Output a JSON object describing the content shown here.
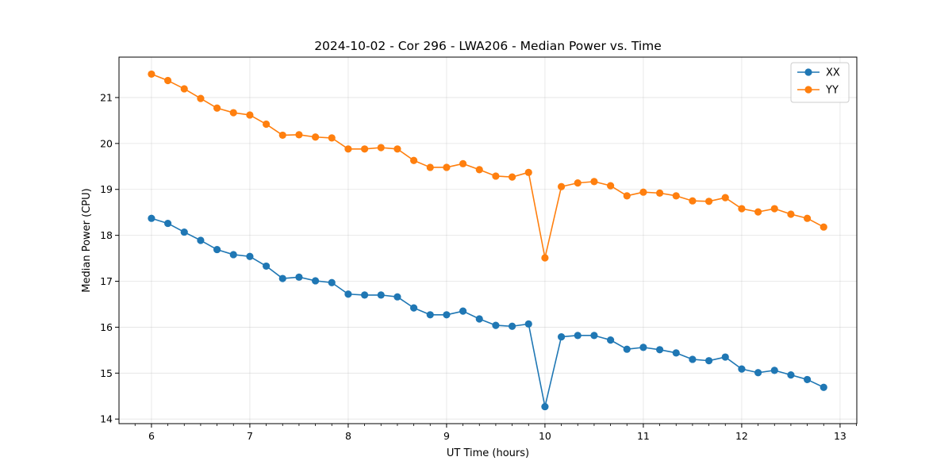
{
  "chart_data": {
    "type": "line",
    "title": "2024-10-02 - Cor 296 - LWA206 - Median Power vs. Time",
    "xlabel": "UT Time (hours)",
    "ylabel": "Median Power (CPU)",
    "xlim": [
      5.67,
      13.17
    ],
    "ylim": [
      13.9,
      21.88
    ],
    "xticks": [
      6,
      7,
      8,
      9,
      10,
      11,
      12,
      13
    ],
    "yticks": [
      14,
      15,
      16,
      17,
      18,
      19,
      20,
      21
    ],
    "grid": true,
    "legend_position": "top-right",
    "x": [
      6.0,
      6.1667,
      6.3333,
      6.5,
      6.6667,
      6.8333,
      7.0,
      7.1667,
      7.3333,
      7.5,
      7.6667,
      7.8333,
      8.0,
      8.1667,
      8.3333,
      8.5,
      8.6667,
      8.8333,
      9.0,
      9.1667,
      9.3333,
      9.5,
      9.6667,
      9.8333,
      10.0,
      10.1667,
      10.3333,
      10.5,
      10.6667,
      10.8333,
      11.0,
      11.1667,
      11.3333,
      11.5,
      11.6667,
      11.8333,
      12.0,
      12.1667,
      12.3333,
      12.5,
      12.6667,
      12.8333
    ],
    "series": [
      {
        "name": "XX",
        "color": "#1f77b4",
        "values": [
          18.37,
          18.26,
          18.07,
          17.89,
          17.69,
          17.58,
          17.54,
          17.33,
          17.06,
          17.09,
          17.01,
          16.97,
          16.72,
          16.7,
          16.7,
          16.66,
          16.42,
          16.27,
          16.27,
          16.35,
          16.18,
          16.04,
          16.02,
          16.07,
          14.27,
          15.79,
          15.82,
          15.82,
          15.72,
          15.52,
          15.56,
          15.51,
          15.44,
          15.3,
          15.27,
          15.35,
          15.09,
          15.01,
          15.06,
          14.96,
          14.86,
          14.69
        ]
      },
      {
        "name": "YY",
        "color": "#ff7f0e",
        "values": [
          21.51,
          21.37,
          21.19,
          20.98,
          20.77,
          20.67,
          20.62,
          20.42,
          20.18,
          20.19,
          20.14,
          20.12,
          19.88,
          19.88,
          19.91,
          19.88,
          19.63,
          19.48,
          19.48,
          19.56,
          19.43,
          19.29,
          19.27,
          19.37,
          17.51,
          19.06,
          19.14,
          19.17,
          19.08,
          18.86,
          18.94,
          18.92,
          18.86,
          18.75,
          18.74,
          18.82,
          18.58,
          18.51,
          18.58,
          18.46,
          18.37,
          18.18
        ]
      }
    ]
  }
}
